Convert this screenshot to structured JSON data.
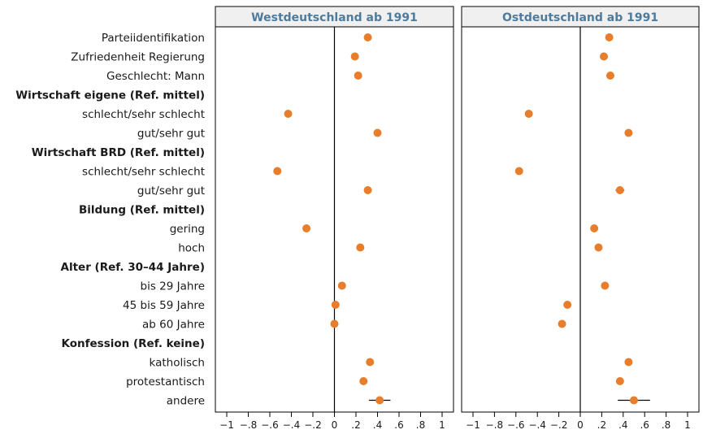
{
  "chart_data": {
    "type": "scatter",
    "xlim": [
      -1,
      1
    ],
    "x_ticks": [
      -1,
      -0.8,
      -0.6,
      -0.4,
      -0.2,
      0,
      0.2,
      0.4,
      0.6,
      0.8,
      1
    ],
    "x_tick_labels": [
      "−1",
      "−.8",
      "−.6",
      "−.4",
      "−.2",
      "0",
      ".2",
      ".4",
      ".6",
      ".8",
      "1"
    ],
    "reference_line": 0,
    "grid": false,
    "colors": {
      "point": "#E87E2B",
      "title": "#4F7A9A",
      "title_bg": "#F0F0F0"
    },
    "rows": [
      {
        "label": "Parteiidentifikation",
        "header": false
      },
      {
        "label": "Zufriedenheit Regierung",
        "header": false
      },
      {
        "label": "Geschlecht: Mann",
        "header": false
      },
      {
        "label": "Wirtschaft eigene (Ref. mittel)",
        "header": true
      },
      {
        "label": "schlecht/sehr schlecht",
        "header": false
      },
      {
        "label": "gut/sehr gut",
        "header": false
      },
      {
        "label": "Wirtschaft BRD (Ref. mittel)",
        "header": true
      },
      {
        "label": "schlecht/sehr schlecht",
        "header": false
      },
      {
        "label": "gut/sehr gut",
        "header": false
      },
      {
        "label": "Bildung (Ref. mittel)",
        "header": true
      },
      {
        "label": "gering",
        "header": false
      },
      {
        "label": "hoch",
        "header": false
      },
      {
        "label": "Alter (Ref. 30–44 Jahre)",
        "header": true
      },
      {
        "label": "bis 29 Jahre",
        "header": false
      },
      {
        "label": "45 bis 59 Jahre",
        "header": false
      },
      {
        "label": "ab 60 Jahre",
        "header": false
      },
      {
        "label": "Konfession (Ref. keine)",
        "header": true
      },
      {
        "label": "katholisch",
        "header": false
      },
      {
        "label": "protestantisch",
        "header": false
      },
      {
        "label": "andere",
        "header": false
      }
    ],
    "panels": [
      {
        "title": "Westdeutschland ab 1991",
        "estimates": [
          0.31,
          0.19,
          0.22,
          null,
          -0.43,
          0.4,
          null,
          -0.53,
          0.31,
          null,
          -0.26,
          0.24,
          null,
          0.07,
          0.01,
          0.0,
          null,
          0.33,
          0.27,
          0.42
        ],
        "ci_low": [
          0.29,
          0.17,
          0.2,
          null,
          -0.46,
          0.38,
          null,
          -0.55,
          0.29,
          null,
          -0.28,
          0.22,
          null,
          0.05,
          -0.01,
          -0.02,
          null,
          0.3,
          0.24,
          0.32
        ],
        "ci_high": [
          0.33,
          0.21,
          0.24,
          null,
          -0.4,
          0.42,
          null,
          -0.51,
          0.33,
          null,
          -0.24,
          0.26,
          null,
          0.09,
          0.03,
          0.02,
          null,
          0.36,
          0.3,
          0.52
        ]
      },
      {
        "title": "Ostdeutschland ab 1991",
        "estimates": [
          0.27,
          0.22,
          0.28,
          null,
          -0.48,
          0.45,
          null,
          -0.57,
          0.37,
          null,
          0.13,
          0.17,
          null,
          0.23,
          -0.12,
          -0.17,
          null,
          0.45,
          0.37,
          0.5
        ],
        "ci_low": [
          0.25,
          0.2,
          0.26,
          null,
          -0.51,
          0.43,
          null,
          -0.59,
          0.33,
          null,
          0.11,
          0.15,
          null,
          0.2,
          -0.14,
          -0.19,
          null,
          0.42,
          0.34,
          0.35
        ],
        "ci_high": [
          0.29,
          0.24,
          0.3,
          null,
          -0.45,
          0.47,
          null,
          -0.55,
          0.41,
          null,
          0.15,
          0.19,
          null,
          0.26,
          -0.1,
          -0.15,
          null,
          0.48,
          0.4,
          0.65
        ]
      }
    ]
  }
}
